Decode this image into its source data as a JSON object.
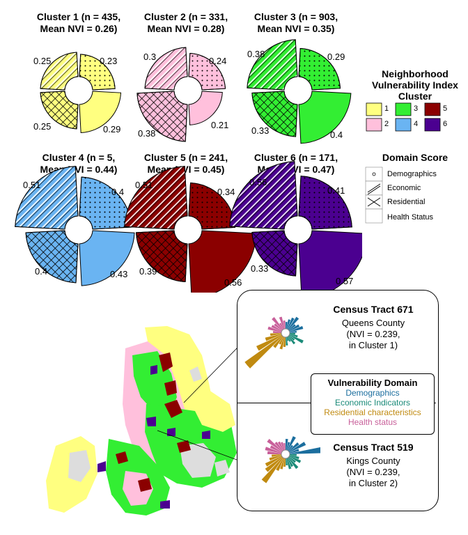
{
  "clusters": [
    {
      "title": "Cluster 1 (n = 435,\nMean NVI = 0.26)",
      "fill": "#ffff80",
      "values": {
        "tl": "0.25",
        "tr": "0.23",
        "bl": "0.25",
        "br": "0.29"
      }
    },
    {
      "title": "Cluster 2 (n = 331,\nMean NVI = 0.28)",
      "fill": "#ffc0dc",
      "values": {
        "tl": "0.3",
        "tr": "0.24",
        "bl": "0.38",
        "br": "0.21"
      }
    },
    {
      "title": "Cluster 3 (n = 903,\nMean NVI = 0.35)",
      "fill": "#33ee33",
      "values": {
        "tl": "0.38",
        "tr": "0.29",
        "bl": "0.33",
        "br": "0.4"
      }
    },
    {
      "title": "Cluster 4 (n = 5,\nMean NVI = 0.44)",
      "fill": "#6ab4f2",
      "values": {
        "tl": "0.51",
        "tr": "0.4",
        "bl": "0.4",
        "br": "0.43"
      }
    },
    {
      "title": "Cluster 5 (n = 241,\nMean NVI = 0.45)",
      "fill": "#8b0000",
      "values": {
        "tl": "0.51",
        "tr": "0.34",
        "bl": "0.39",
        "br": "0.56"
      }
    },
    {
      "title": "Cluster 6 (n = 171,\nMean NVI = 0.47)",
      "fill": "#4b0090",
      "values": {
        "tl": "0.56",
        "tr": "0.41",
        "bl": "0.33",
        "br": "0.57"
      }
    }
  ],
  "legend": {
    "nvi_title": "Neighborhood\nVulnerability Index\nCluster",
    "swatches": [
      {
        "label": "1",
        "color": "#ffff80"
      },
      {
        "label": "2",
        "color": "#ffc0dc"
      },
      {
        "label": "3",
        "color": "#33ee33"
      },
      {
        "label": "4",
        "color": "#6ab4f2"
      },
      {
        "label": "5",
        "color": "#8b0000"
      },
      {
        "label": "6",
        "color": "#4b0090"
      }
    ],
    "domain_title": "Domain Score",
    "domains": [
      "Demographics",
      "Economic",
      "Residential",
      "Health Status"
    ]
  },
  "tracts": [
    {
      "title": "Census Tract 671",
      "text": "Queens County\n(NVI = 0.239,\nin Cluster 1)"
    },
    {
      "title": "Census Tract 519",
      "text": "Kings County\n(NVI = 0.239,\nin Cluster 2)"
    }
  ],
  "vulnerability_domain": {
    "title": "Vulnerability Domain",
    "items": [
      {
        "label": "Demographics",
        "color": "#1b6e9e"
      },
      {
        "label": "Economic Indicators",
        "color": "#1a8a78"
      },
      {
        "label": "Residential characteristics",
        "color": "#c08a10"
      },
      {
        "label": "Health status",
        "color": "#c8609a"
      }
    ]
  }
}
